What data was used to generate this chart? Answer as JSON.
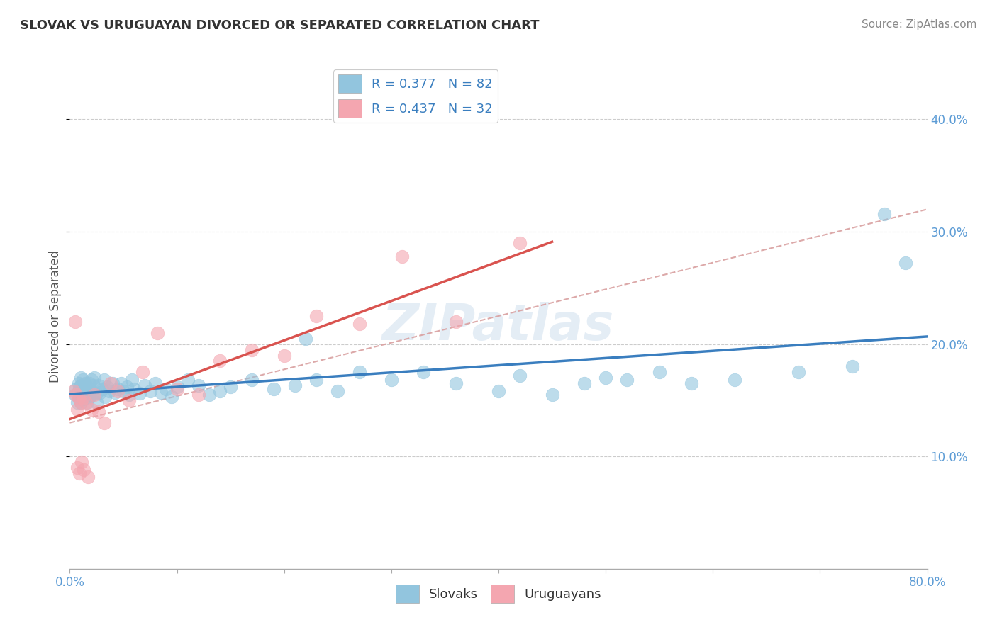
{
  "title": "SLOVAK VS URUGUAYAN DIVORCED OR SEPARATED CORRELATION CHART",
  "source": "Source: ZipAtlas.com",
  "ylabel": "Divorced or Separated",
  "legend_slovak": "Slovaks",
  "legend_uruguayan": "Uruguayans",
  "legend_r_slovak": "R = 0.377",
  "legend_n_slovak": "N = 82",
  "legend_r_uruguayan": "R = 0.437",
  "legend_n_uruguayan": "N = 32",
  "blue_color": "#92c5de",
  "pink_color": "#f4a6b0",
  "trend_blue": "#3a7ebf",
  "trend_pink": "#d9534f",
  "dashed_color": "#d9a0a0",
  "xlim": [
    0.0,
    0.8
  ],
  "ylim": [
    0.0,
    0.45
  ],
  "yticks": [
    0.1,
    0.2,
    0.3,
    0.4
  ],
  "ytick_labels": [
    "10.0%",
    "20.0%",
    "30.0%",
    "40.0%"
  ],
  "slovak_x": [
    0.005,
    0.006,
    0.007,
    0.008,
    0.008,
    0.009,
    0.009,
    0.01,
    0.01,
    0.01,
    0.01,
    0.012,
    0.012,
    0.013,
    0.013,
    0.014,
    0.015,
    0.015,
    0.016,
    0.017,
    0.018,
    0.018,
    0.019,
    0.02,
    0.02,
    0.021,
    0.022,
    0.023,
    0.025,
    0.025,
    0.027,
    0.028,
    0.03,
    0.032,
    0.033,
    0.035,
    0.037,
    0.04,
    0.042,
    0.045,
    0.048,
    0.05,
    0.053,
    0.055,
    0.058,
    0.06,
    0.065,
    0.07,
    0.075,
    0.08,
    0.085,
    0.09,
    0.095,
    0.1,
    0.11,
    0.12,
    0.13,
    0.14,
    0.15,
    0.17,
    0.19,
    0.21,
    0.23,
    0.25,
    0.27,
    0.3,
    0.33,
    0.36,
    0.4,
    0.42,
    0.45,
    0.48,
    0.5,
    0.52,
    0.55,
    0.58,
    0.62,
    0.68,
    0.73,
    0.78,
    0.22,
    0.76
  ],
  "slovak_y": [
    0.155,
    0.16,
    0.148,
    0.165,
    0.158,
    0.152,
    0.162,
    0.17,
    0.155,
    0.148,
    0.163,
    0.156,
    0.168,
    0.151,
    0.159,
    0.165,
    0.154,
    0.162,
    0.148,
    0.157,
    0.165,
    0.153,
    0.16,
    0.158,
    0.168,
    0.155,
    0.163,
    0.17,
    0.156,
    0.148,
    0.163,
    0.157,
    0.16,
    0.168,
    0.153,
    0.162,
    0.158,
    0.165,
    0.157,
    0.16,
    0.165,
    0.158,
    0.162,
    0.155,
    0.168,
    0.16,
    0.156,
    0.163,
    0.158,
    0.165,
    0.157,
    0.16,
    0.153,
    0.162,
    0.168,
    0.163,
    0.155,
    0.158,
    0.162,
    0.168,
    0.16,
    0.163,
    0.168,
    0.158,
    0.175,
    0.168,
    0.175,
    0.165,
    0.158,
    0.172,
    0.155,
    0.165,
    0.17,
    0.168,
    0.175,
    0.165,
    0.168,
    0.175,
    0.18,
    0.272,
    0.205,
    0.316
  ],
  "uruguayan_x": [
    0.004,
    0.005,
    0.006,
    0.007,
    0.007,
    0.008,
    0.009,
    0.01,
    0.011,
    0.012,
    0.013,
    0.015,
    0.017,
    0.02,
    0.023,
    0.027,
    0.032,
    0.038,
    0.045,
    0.055,
    0.068,
    0.082,
    0.1,
    0.12,
    0.14,
    0.17,
    0.2,
    0.23,
    0.27,
    0.31,
    0.36,
    0.42
  ],
  "uruguayan_y": [
    0.158,
    0.22,
    0.155,
    0.142,
    0.09,
    0.152,
    0.085,
    0.148,
    0.095,
    0.152,
    0.088,
    0.148,
    0.082,
    0.142,
    0.155,
    0.14,
    0.13,
    0.165,
    0.158,
    0.15,
    0.175,
    0.21,
    0.16,
    0.155,
    0.185,
    0.195,
    0.19,
    0.225,
    0.218,
    0.278,
    0.22,
    0.29
  ],
  "title_fontsize": 13,
  "source_fontsize": 11,
  "axis_label_color": "#5b9bd5",
  "axis_label_fontsize": 12,
  "legend_fontsize": 13
}
